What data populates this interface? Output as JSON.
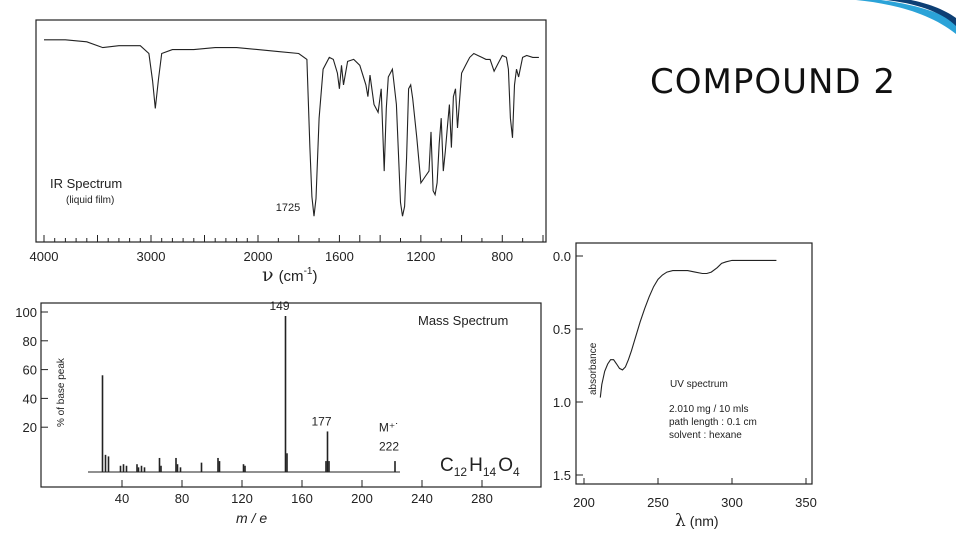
{
  "slide": {
    "title": "COMPOUND 2"
  },
  "colors": {
    "ink": "#222222",
    "accent": "#2ba3d8"
  },
  "chart_data": [
    {
      "type": "line",
      "title": "IR Spectrum",
      "subtitle": "(liquid film)",
      "xlabel": "ν (cm⁻¹)",
      "xlabel_main": "ν",
      "xlabel_unit": "(cm",
      "xlabel_exp": "-1",
      "xlabel_close": ")",
      "ylabel": "",
      "x_reversed": true,
      "x_scale_change_at": 2000,
      "xlim": [
        4000,
        600
      ],
      "ylim": [
        0,
        100
      ],
      "ticks_x": [
        "4000",
        "3000",
        "2000",
        "1600",
        "1200",
        "800"
      ],
      "tick_values_x": [
        4000,
        3000,
        2000,
        1600,
        1200,
        800
      ],
      "annotations": [
        {
          "text": "1725",
          "x": 1725,
          "y": 5
        }
      ],
      "series": [
        {
          "x": [
            4000,
            3800,
            3600,
            3450,
            3300,
            3100,
            3020,
            2985,
            2960,
            2930,
            2900,
            2800,
            2600,
            2400,
            2200,
            2000,
            1900,
            1800,
            1760,
            1745,
            1735,
            1725,
            1715,
            1700,
            1680,
            1650,
            1630,
            1610,
            1600,
            1590,
            1580,
            1560,
            1530,
            1500,
            1470,
            1460,
            1450,
            1430,
            1410,
            1395,
            1380,
            1370,
            1360,
            1340,
            1320,
            1300,
            1290,
            1280,
            1270,
            1260,
            1250,
            1240,
            1220,
            1200,
            1180,
            1160,
            1150,
            1140,
            1130,
            1120,
            1110,
            1100,
            1090,
            1080,
            1070,
            1060,
            1050,
            1040,
            1030,
            1020,
            1000,
            980,
            960,
            940,
            920,
            900,
            880,
            860,
            840,
            820,
            800,
            780,
            770,
            760,
            750,
            740,
            730,
            720,
            700,
            680,
            650,
            620
          ],
          "y": [
            95,
            95,
            94,
            91,
            92,
            92,
            88,
            74,
            60,
            75,
            88,
            90,
            90,
            91,
            91,
            90,
            89,
            88,
            85,
            40,
            15,
            5,
            14,
            55,
            80,
            86,
            85,
            78,
            70,
            82,
            72,
            84,
            85,
            82,
            72,
            66,
            77,
            62,
            58,
            70,
            28,
            60,
            76,
            80,
            62,
            12,
            5,
            10,
            35,
            70,
            72,
            65,
            45,
            22,
            25,
            28,
            48,
            18,
            16,
            22,
            42,
            55,
            28,
            38,
            50,
            62,
            40,
            66,
            70,
            50,
            78,
            82,
            86,
            88,
            87,
            86,
            85,
            85,
            79,
            83,
            87,
            86,
            80,
            55,
            45,
            72,
            80,
            76,
            86,
            87,
            86,
            86
          ]
        }
      ]
    },
    {
      "type": "bar",
      "title": "Mass Spectrum",
      "formula": {
        "c": "C",
        "c_n": "12",
        "h": "H",
        "h_n": "14",
        "o": "O",
        "o_n": "4"
      },
      "xlabel": "m / e",
      "ylabel": "% of base peak",
      "xlim": [
        0,
        300
      ],
      "ylim": [
        0,
        100
      ],
      "ticks_x": [
        "40",
        "80",
        "120",
        "160",
        "200",
        "240",
        "280"
      ],
      "tick_values_x": [
        40,
        80,
        120,
        160,
        200,
        240,
        280
      ],
      "ticks_y": [
        "20",
        "40",
        "60",
        "80",
        "100"
      ],
      "tick_values_y": [
        20,
        40,
        60,
        80,
        100
      ],
      "annotations": [
        {
          "text": "149",
          "x": 149,
          "y": 100
        },
        {
          "text": "177",
          "x": 177,
          "y": 26
        },
        {
          "text": "M⁺˙",
          "x": 222,
          "y": 22
        },
        {
          "text": "222",
          "x": 222,
          "y": 10
        }
      ],
      "x": [
        27,
        29,
        31,
        39,
        41,
        43,
        50,
        51,
        53,
        55,
        65,
        66,
        76,
        77,
        79,
        93,
        104,
        105,
        121,
        122,
        149,
        150,
        176,
        177,
        178,
        222
      ],
      "values": [
        62,
        11,
        10,
        4,
        5,
        4,
        5,
        3,
        4,
        3,
        9,
        4,
        9,
        5,
        3,
        6,
        9,
        7,
        5,
        4,
        100,
        12,
        7,
        26,
        7,
        7
      ]
    },
    {
      "type": "line",
      "title": "UV spectrum",
      "notes": [
        "2.010 mg / 10 mls",
        "path length :  0.1 cm",
        "solvent : hexane"
      ],
      "xlabel": "λ (nm)",
      "xlabel_main": "λ",
      "xlabel_unit": "(nm)",
      "ylabel": "absorbance",
      "xlim": [
        195,
        350
      ],
      "ylim": [
        1.5,
        0.0
      ],
      "ticks_x": [
        "200",
        "250",
        "300",
        "350"
      ],
      "tick_values_x": [
        200,
        250,
        300,
        350
      ],
      "ticks_y": [
        "0.0",
        "0.5",
        "1.0",
        "1.5"
      ],
      "tick_values_y": [
        0.0,
        0.5,
        1.0,
        1.5
      ],
      "series": [
        {
          "x": [
            211,
            212,
            214,
            216,
            218,
            220,
            222,
            224,
            226,
            228,
            230,
            232,
            235,
            238,
            241,
            244,
            247,
            250,
            253,
            256,
            260,
            265,
            270,
            275,
            280,
            283,
            286,
            290,
            293,
            296,
            300,
            310,
            320,
            330
          ],
          "y": [
            0.97,
            0.88,
            0.79,
            0.74,
            0.71,
            0.71,
            0.74,
            0.77,
            0.78,
            0.76,
            0.71,
            0.65,
            0.55,
            0.45,
            0.36,
            0.28,
            0.21,
            0.16,
            0.13,
            0.11,
            0.1,
            0.1,
            0.1,
            0.11,
            0.12,
            0.12,
            0.11,
            0.08,
            0.05,
            0.04,
            0.03,
            0.03,
            0.03,
            0.03
          ]
        }
      ]
    }
  ]
}
